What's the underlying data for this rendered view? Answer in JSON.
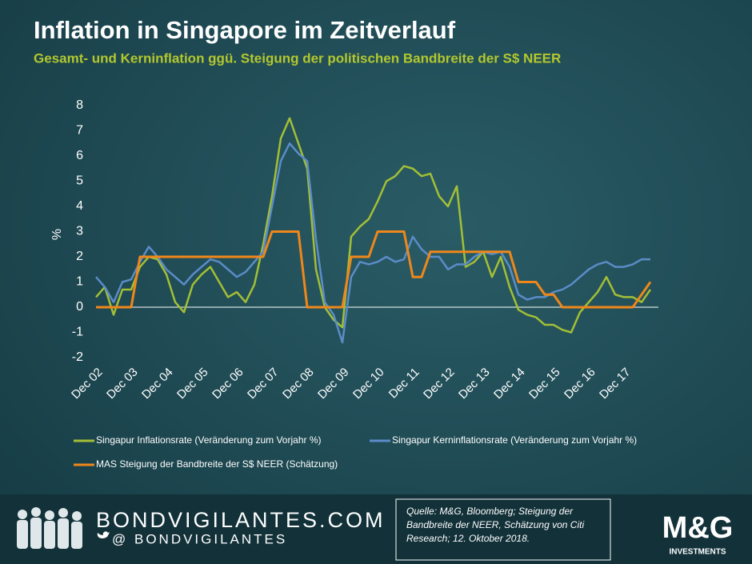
{
  "chart_data": {
    "type": "line",
    "title": "Inflation in Singapore im Zeitverlauf",
    "subtitle": "Gesamt- und Kerninflation ggü. Steigung der politischen Bandbreite der S$ NEER",
    "y_label": "%",
    "categories": [
      "Dec 02",
      null,
      null,
      null,
      "Dec 03",
      null,
      null,
      null,
      "Dec 04",
      null,
      null,
      null,
      "Dec 05",
      null,
      null,
      null,
      "Dec 06",
      null,
      null,
      null,
      "Dec 07",
      null,
      null,
      null,
      "Dec 08",
      null,
      null,
      null,
      "Dec 09",
      null,
      null,
      null,
      "Dec 10",
      null,
      null,
      null,
      "Dec 11",
      null,
      null,
      null,
      "Dec 12",
      null,
      null,
      null,
      "Dec 13",
      null,
      null,
      null,
      "Dec 14",
      null,
      null,
      null,
      "Dec 15",
      null,
      null,
      null,
      "Dec 16",
      null,
      null,
      null,
      "Dec 17",
      null,
      null,
      null
    ],
    "series": [
      {
        "name": "Singapur Inflationsrate (Veränderung zum Vorjahr %)",
        "color": "#a3bf35",
        "values": [
          0.4,
          0.8,
          -0.3,
          0.7,
          0.7,
          1.6,
          2.0,
          1.9,
          1.3,
          0.2,
          -0.2,
          0.9,
          1.3,
          1.6,
          1.0,
          0.4,
          0.6,
          0.2,
          0.9,
          2.5,
          4.4,
          6.7,
          7.5,
          6.5,
          5.5,
          1.5,
          0.0,
          -0.5,
          -0.8,
          2.8,
          3.2,
          3.5,
          4.2,
          5.0,
          5.2,
          5.6,
          5.5,
          5.2,
          5.3,
          4.4,
          4.0,
          4.8,
          1.6,
          1.8,
          2.2,
          1.2,
          2.0,
          0.8,
          -0.1,
          -0.3,
          -0.4,
          -0.7,
          -0.7,
          -0.9,
          -1.0,
          -0.2,
          0.2,
          0.6,
          1.2,
          0.5,
          0.4,
          0.4,
          0.2,
          0.7
        ]
      },
      {
        "name": "Singapur Kerninflationsrate (Veränderung zum Vorjahr %)",
        "color": "#5b8cc8",
        "values": [
          1.2,
          0.8,
          0.2,
          1.0,
          1.1,
          1.8,
          2.4,
          2.0,
          1.5,
          1.2,
          0.9,
          1.3,
          1.6,
          1.9,
          1.8,
          1.5,
          1.2,
          1.4,
          1.8,
          2.2,
          4.0,
          5.8,
          6.5,
          6.1,
          5.8,
          2.7,
          0.2,
          -0.3,
          -1.4,
          1.2,
          1.8,
          1.7,
          1.8,
          2.0,
          1.8,
          1.9,
          2.8,
          2.3,
          2.0,
          2.0,
          1.5,
          1.7,
          1.7,
          2.0,
          2.2,
          2.1,
          2.2,
          1.6,
          0.5,
          0.3,
          0.4,
          0.4,
          0.6,
          0.7,
          0.9,
          1.2,
          1.5,
          1.7,
          1.8,
          1.6,
          1.6,
          1.7,
          1.9,
          1.9
        ]
      },
      {
        "name": "MAS Steigung der Bandbreite der S$ NEER (Schätzung)",
        "color": "#f0871a",
        "values": [
          0,
          0,
          0,
          0,
          0,
          2,
          2,
          2,
          2,
          2,
          2,
          2,
          2,
          2,
          2,
          2,
          2,
          2,
          2,
          2,
          3,
          3,
          3,
          3,
          0,
          0,
          0,
          0,
          0,
          2,
          2,
          2,
          3,
          3,
          3,
          3,
          1.2,
          1.2,
          2.2,
          2.2,
          2.2,
          2.2,
          2.2,
          2.2,
          2.2,
          2.2,
          2.2,
          2.2,
          1.0,
          1.0,
          1.0,
          0.5,
          0.5,
          0,
          0,
          0,
          0,
          0,
          0,
          0,
          0,
          0,
          0.5,
          1.0
        ]
      }
    ],
    "ylim": [
      -2,
      8
    ],
    "yticks": [
      -2,
      -1,
      0,
      1,
      2,
      3,
      4,
      5,
      6,
      7,
      8
    ],
    "zero_line": true
  },
  "footer": {
    "site": "BONDVIGILANTES.COM",
    "handle": "@ BONDVIGILANTES",
    "source": [
      "Quelle: M&G, Bloomberg; Steigung der",
      "Bandbreite der NEER, Schätzung von Citi",
      "Research; 12. Oktober 2018."
    ],
    "logo": "M&G",
    "logo_sub": "INVESTMENTS"
  }
}
